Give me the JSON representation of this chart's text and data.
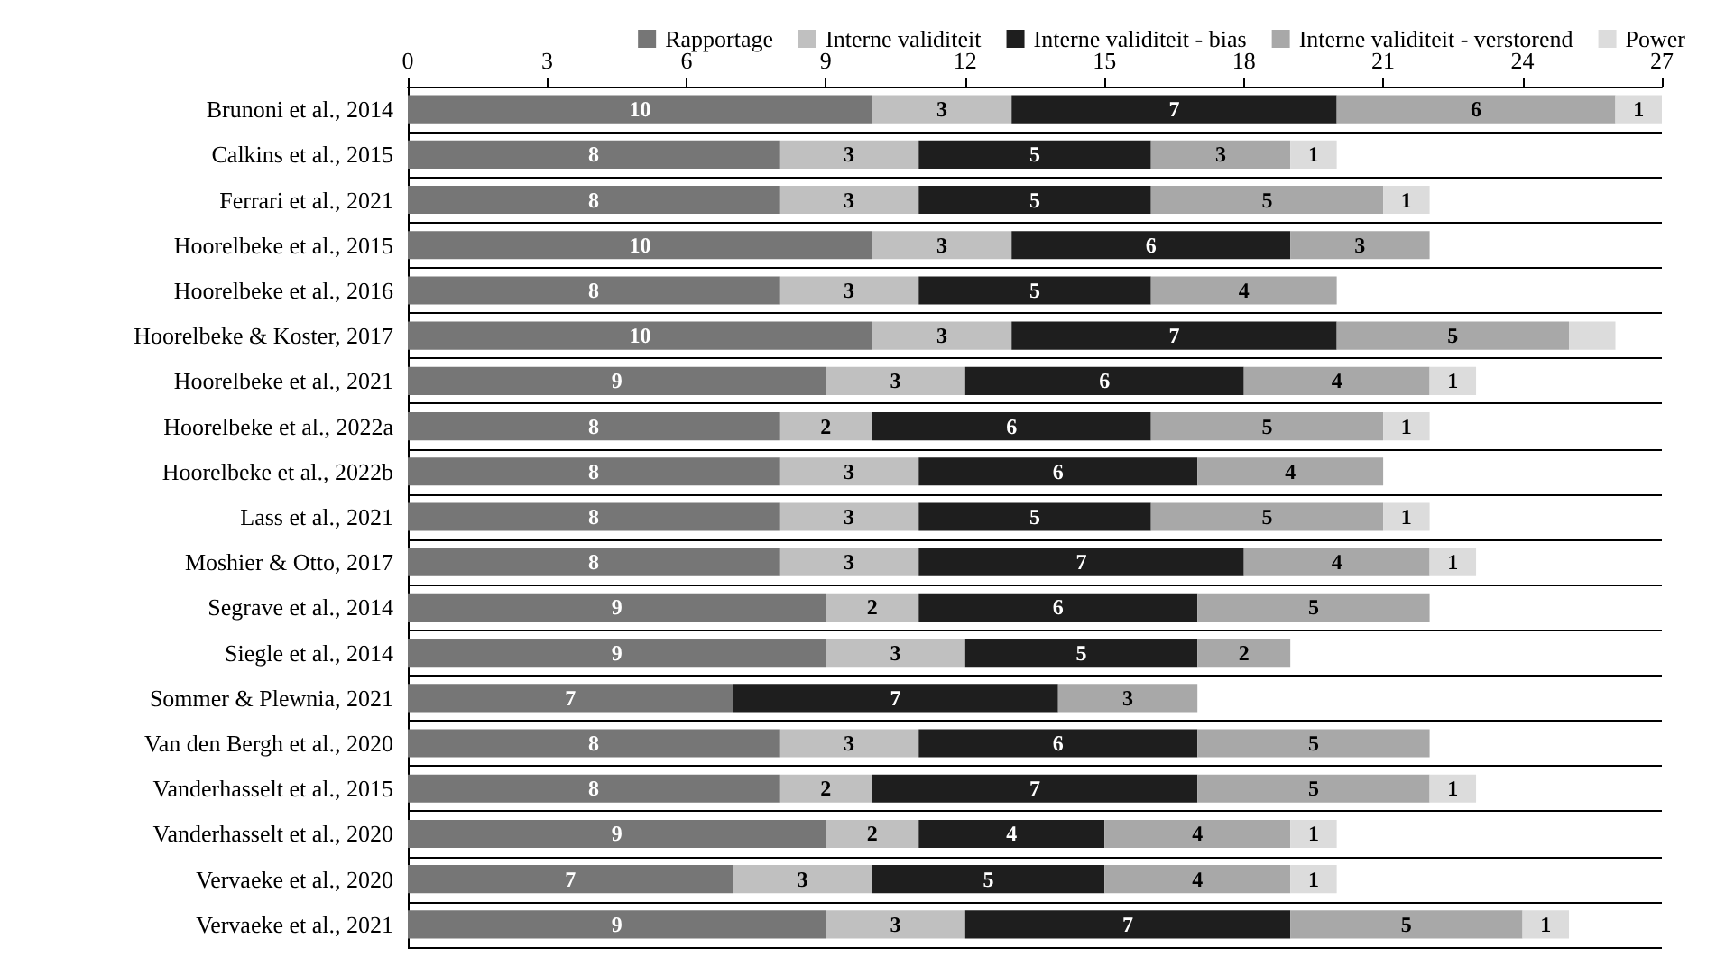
{
  "chart_data": {
    "type": "bar",
    "orientation": "horizontal",
    "stacked": true,
    "legend": "top",
    "grid": "y",
    "categories": [
      "Brunoni et al., 2014",
      "Calkins et al., 2015",
      "Ferrari et al., 2021",
      "Hoorelbeke et al., 2015",
      "Hoorelbeke et al., 2016",
      "Hoorelbeke & Koster, 2017",
      "Hoorelbeke et al., 2021",
      "Hoorelbeke et al., 2022a",
      "Hoorelbeke et al., 2022b",
      "Lass et al., 2021",
      "Moshier & Otto, 2017",
      "Segrave et al., 2014",
      "Siegle et al., 2014",
      "Sommer & Plewnia, 2021",
      "Van den Bergh et al., 2020",
      "Vanderhasselt et al., 2015",
      "Vanderhasselt et al., 2020",
      "Vervaeke et al., 2020",
      "Vervaeke et al., 2021"
    ],
    "xlim": [
      0,
      27
    ],
    "xticks": [
      0,
      3,
      6,
      9,
      12,
      15,
      18,
      21,
      24,
      27
    ],
    "series": [
      {
        "name": "Rapportage",
        "color": "#767676",
        "values": [
          10,
          8,
          8,
          10,
          8,
          10,
          9,
          8,
          8,
          8,
          8,
          9,
          9,
          7,
          8,
          8,
          9,
          7,
          9
        ],
        "value_labels": [
          "10",
          "8",
          "8",
          "10",
          "8",
          "10",
          "9",
          "8",
          "8",
          "8",
          "8",
          "9",
          "9",
          "7",
          "8",
          "8",
          "9",
          "7",
          "9"
        ]
      },
      {
        "name": "Interne validiteit",
        "color": "#c0c0c0",
        "values": [
          3,
          3,
          3,
          3,
          3,
          3,
          3,
          2,
          3,
          3,
          3,
          2,
          3,
          null,
          3,
          2,
          2,
          3,
          3
        ],
        "value_labels": [
          "3",
          "3",
          "3",
          "3",
          "3",
          "3",
          "3",
          "2",
          "3",
          "3",
          "3",
          "2",
          "3",
          null,
          "3",
          "2",
          "2",
          "3",
          "3"
        ]
      },
      {
        "name": "Interne validiteit - bias",
        "color": "#1e1e1e",
        "values": [
          7,
          5,
          5,
          6,
          5,
          7,
          6,
          6,
          6,
          5,
          7,
          6,
          5,
          7,
          6,
          7,
          4,
          5,
          7
        ],
        "value_labels": [
          "7",
          "5",
          "5",
          "6",
          "5",
          "7",
          "6",
          "6",
          "6",
          "5",
          "7",
          "6",
          "5",
          "7",
          "6",
          "7",
          "4",
          "5",
          "7"
        ]
      },
      {
        "name": "Interne validiteit - verstorend",
        "color": "#a8a8a8",
        "values": [
          6,
          3,
          5,
          3,
          4,
          5,
          4,
          5,
          4,
          5,
          4,
          5,
          2,
          3,
          5,
          5,
          4,
          4,
          5
        ],
        "value_labels": [
          "6",
          "3",
          "5",
          "3",
          "4",
          "5",
          "4",
          "5",
          "4",
          "5",
          "4",
          "5",
          "2",
          "3",
          "5",
          "5",
          "4",
          "4",
          "5"
        ]
      },
      {
        "name": "Power",
        "color": "#dcdcdc",
        "values": [
          1,
          1,
          1,
          null,
          null,
          1,
          1,
          1,
          null,
          1,
          1,
          null,
          null,
          null,
          null,
          1,
          1,
          1,
          1
        ],
        "value_labels": [
          "1",
          "1",
          "1",
          null,
          null,
          null,
          "1",
          "1",
          null,
          "1",
          "1",
          null,
          null,
          null,
          null,
          "1",
          "1",
          "1",
          "1"
        ]
      }
    ]
  }
}
